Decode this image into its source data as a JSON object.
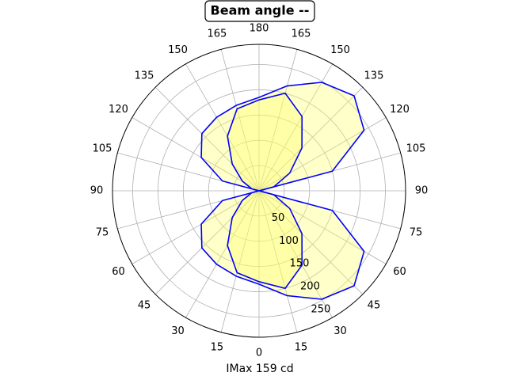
{
  "chart_data": {
    "type": "polar",
    "title": "Beam angle --",
    "xlabel": "IMax 159 cd",
    "theta": [
      -180,
      -165,
      -150,
      -135,
      -120,
      -105,
      -90,
      -75,
      -60,
      -45,
      -30,
      -15,
      0,
      15,
      30,
      45,
      60,
      75,
      90,
      105,
      120,
      135,
      150,
      165,
      180
    ],
    "series": [
      {
        "color": "#0000ff",
        "fill": "#ffff66",
        "values": [
          185,
          175,
          168,
          160,
          132,
          75,
          0,
          75,
          132,
          160,
          168,
          175,
          185,
          215,
          248,
          266,
          240,
          150,
          0,
          150,
          240,
          266,
          248,
          215,
          185
        ]
      },
      {
        "color": "#0000ff",
        "fill": "#ffff66",
        "values": [
          180,
          168,
          125,
          75,
          38,
          15,
          0,
          15,
          38,
          75,
          125,
          168,
          180,
          200,
          170,
          120,
          70,
          30,
          0,
          30,
          70,
          120,
          170,
          200,
          180
        ]
      }
    ],
    "rlim": [
      0,
      290
    ],
    "rticks": [
      50,
      100,
      150,
      200,
      250
    ],
    "thetaticks": [
      0,
      15,
      30,
      45,
      60,
      75,
      90,
      105,
      120,
      135,
      150,
      165,
      180,
      {
        "value": -165,
        "label": "165"
      },
      {
        "value": -150,
        "label": "150"
      },
      {
        "value": -135,
        "label": "135"
      },
      {
        "value": -120,
        "label": "120"
      },
      {
        "value": -105,
        "label": "105"
      },
      {
        "value": -90,
        "label": "90"
      },
      {
        "value": -75,
        "label": "75"
      },
      {
        "value": -60,
        "label": "60"
      },
      {
        "value": -45,
        "label": "45"
      },
      {
        "value": -30,
        "label": "30"
      },
      {
        "value": -15,
        "label": "15"
      }
    ],
    "grid": true
  }
}
